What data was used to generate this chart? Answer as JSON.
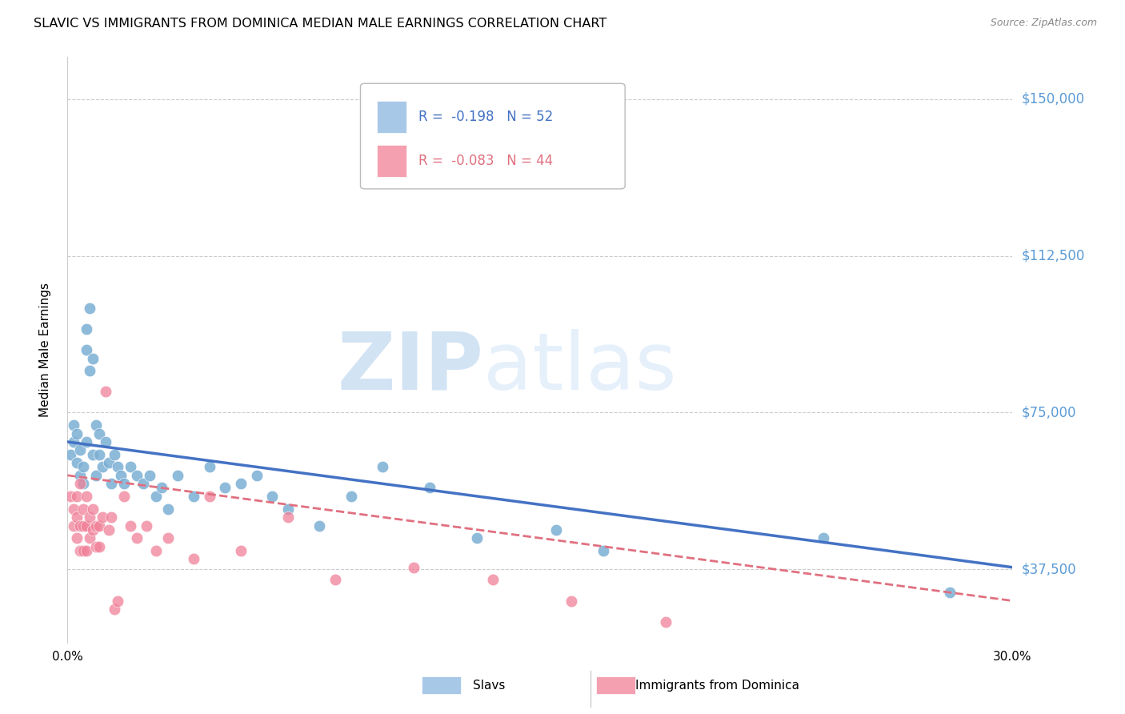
{
  "title": "SLAVIC VS IMMIGRANTS FROM DOMINICA MEDIAN MALE EARNINGS CORRELATION CHART",
  "source": "Source: ZipAtlas.com",
  "ylabel": "Median Male Earnings",
  "xlim": [
    0.0,
    0.3
  ],
  "ylim": [
    20000,
    160000
  ],
  "yticks": [
    37500,
    75000,
    112500,
    150000
  ],
  "ytick_labels": [
    "$37,500",
    "$75,000",
    "$112,500",
    "$150,000"
  ],
  "xticks": [
    0.0,
    0.05,
    0.1,
    0.15,
    0.2,
    0.25,
    0.3
  ],
  "xtick_labels": [
    "0.0%",
    "",
    "",
    "",
    "",
    "",
    "30.0%"
  ],
  "legend_entries": [
    {
      "label": "Slavs",
      "R": "-0.198",
      "N": "52",
      "color": "#a8c8e8"
    },
    {
      "label": "Immigrants from Dominica",
      "R": "-0.083",
      "N": "44",
      "color": "#f4a0b0"
    }
  ],
  "slavs_x": [
    0.001,
    0.002,
    0.002,
    0.003,
    0.003,
    0.004,
    0.004,
    0.005,
    0.005,
    0.006,
    0.006,
    0.006,
    0.007,
    0.007,
    0.008,
    0.008,
    0.009,
    0.009,
    0.01,
    0.01,
    0.011,
    0.012,
    0.013,
    0.014,
    0.015,
    0.016,
    0.017,
    0.018,
    0.02,
    0.022,
    0.024,
    0.026,
    0.028,
    0.03,
    0.032,
    0.035,
    0.04,
    0.045,
    0.05,
    0.055,
    0.06,
    0.065,
    0.07,
    0.08,
    0.09,
    0.1,
    0.115,
    0.13,
    0.155,
    0.17,
    0.24,
    0.28
  ],
  "slavs_y": [
    65000,
    68000,
    72000,
    63000,
    70000,
    60000,
    66000,
    62000,
    58000,
    90000,
    95000,
    68000,
    100000,
    85000,
    88000,
    65000,
    72000,
    60000,
    65000,
    70000,
    62000,
    68000,
    63000,
    58000,
    65000,
    62000,
    60000,
    58000,
    62000,
    60000,
    58000,
    60000,
    55000,
    57000,
    52000,
    60000,
    55000,
    62000,
    57000,
    58000,
    60000,
    55000,
    52000,
    48000,
    55000,
    62000,
    57000,
    45000,
    47000,
    42000,
    45000,
    32000
  ],
  "dominica_x": [
    0.001,
    0.002,
    0.002,
    0.003,
    0.003,
    0.003,
    0.004,
    0.004,
    0.004,
    0.005,
    0.005,
    0.005,
    0.006,
    0.006,
    0.006,
    0.007,
    0.007,
    0.008,
    0.008,
    0.009,
    0.009,
    0.01,
    0.01,
    0.011,
    0.012,
    0.013,
    0.014,
    0.015,
    0.016,
    0.018,
    0.02,
    0.022,
    0.025,
    0.028,
    0.032,
    0.04,
    0.045,
    0.055,
    0.07,
    0.085,
    0.11,
    0.135,
    0.16,
    0.19
  ],
  "dominica_y": [
    55000,
    52000,
    48000,
    55000,
    50000,
    45000,
    58000,
    48000,
    42000,
    52000,
    48000,
    42000,
    55000,
    48000,
    42000,
    50000,
    45000,
    52000,
    47000,
    48000,
    43000,
    48000,
    43000,
    50000,
    80000,
    47000,
    50000,
    28000,
    30000,
    55000,
    48000,
    45000,
    48000,
    42000,
    45000,
    40000,
    55000,
    42000,
    50000,
    35000,
    38000,
    35000,
    30000,
    25000
  ],
  "slavs_color": "#7bafd4",
  "dominica_color": "#f08098",
  "trendline_slavs_color": "#4472c4",
  "trendline_dominica_color": "#e07080",
  "trendline_slavs_x0": 0.0,
  "trendline_slavs_x1": 0.3,
  "trendline_slavs_y0": 68000,
  "trendline_slavs_y1": 38000,
  "trendline_dom_x0": 0.0,
  "trendline_dom_x1": 0.3,
  "trendline_dom_y0": 60000,
  "trendline_dom_y1": 30000,
  "watermark_zip": "ZIP",
  "watermark_atlas": "atlas",
  "watermark_color": "#c8daf0",
  "background_color": "#ffffff",
  "grid_color": "#cccccc"
}
